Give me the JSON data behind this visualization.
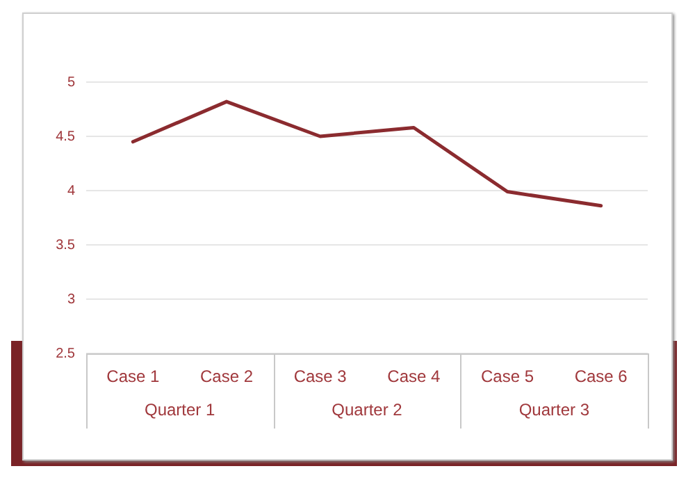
{
  "chart_data": {
    "type": "line",
    "categories": [
      "Case 1",
      "Case 2",
      "Case 3",
      "Case 4",
      "Case 5",
      "Case 6"
    ],
    "series": [
      {
        "color": "#8b2b2f",
        "values": [
          4.45,
          4.82,
          4.5,
          4.58,
          3.99,
          3.86
        ]
      }
    ],
    "ylim": [
      2.5,
      5
    ],
    "yticks": [
      2.5,
      3,
      3.5,
      4,
      4.5,
      5
    ],
    "grid": "y",
    "legend": false,
    "marker": "none",
    "line_style": "solid",
    "annotations": [
      "Quarter 1",
      "Quarter 2",
      "Quarter 3"
    ]
  }
}
